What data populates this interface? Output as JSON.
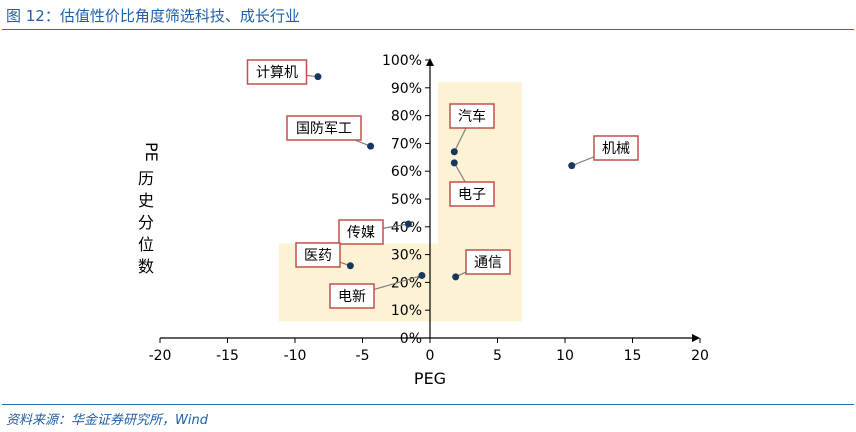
{
  "figure": {
    "title": "图 12：估值性价比角度筛选科技、成长行业",
    "source": "资料来源：华金证券研究所，Wind"
  },
  "chart_data": {
    "type": "scatter",
    "xlabel": "PEG",
    "ylabel": "PE历史分位数",
    "xlim": [
      -20,
      20
    ],
    "ylim": [
      0,
      100
    ],
    "xticks": [
      "-20",
      "-15",
      "-10",
      "-5",
      "0",
      "5",
      "10",
      "15",
      "20"
    ],
    "yticks": [
      "0%",
      "10%",
      "20%",
      "30%",
      "40%",
      "50%",
      "60%",
      "70%",
      "80%",
      "90%",
      "100%"
    ],
    "points": [
      {
        "label": "计算机",
        "x": -8.3,
        "y": 94
      },
      {
        "label": "国防军工",
        "x": -4.4,
        "y": 69
      },
      {
        "label": "传媒",
        "x": -1.6,
        "y": 41
      },
      {
        "label": "医药",
        "x": -5.9,
        "y": 26
      },
      {
        "label": "电新",
        "x": -0.6,
        "y": 22.5
      },
      {
        "label": "汽车",
        "x": 1.8,
        "y": 67
      },
      {
        "label": "电子",
        "x": 1.8,
        "y": 63
      },
      {
        "label": "通信",
        "x": 1.9,
        "y": 22
      },
      {
        "label": "机械",
        "x": 10.5,
        "y": 62
      }
    ],
    "highlight_regions": [
      {
        "x": [
          0.6,
          6.8
        ],
        "y": [
          6,
          92
        ]
      },
      {
        "x": [
          -11.2,
          6.8
        ],
        "y": [
          6,
          34
        ]
      }
    ],
    "colors": {
      "highlight": "#fdf3d4",
      "point": "#17375e",
      "label_border": "#c0504d",
      "axis": "#000000",
      "leader": "#7f7f7f"
    }
  }
}
